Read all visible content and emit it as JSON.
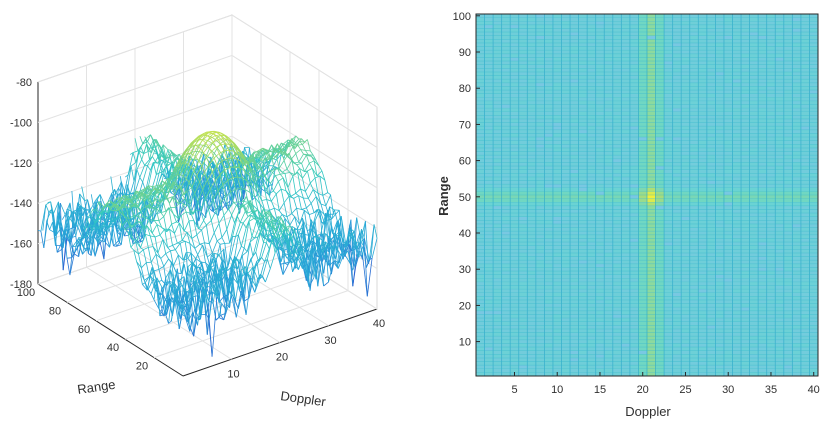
{
  "chart_data": [
    {
      "type": "surface",
      "xlabel": "Doppler",
      "ylabel": "Range",
      "zlabel": "",
      "x_ticks": [
        10,
        20,
        30,
        40
      ],
      "y_ticks": [
        20,
        40,
        60,
        80,
        100
      ],
      "z_ticks": [
        -80,
        -100,
        -120,
        -140,
        -160,
        -180
      ],
      "xlim": [
        0,
        40
      ],
      "ylim": [
        0,
        100
      ],
      "zlim": [
        -180,
        -80
      ],
      "noise_floor": -150,
      "peak": {
        "doppler": 21,
        "range": 50,
        "value": -100
      },
      "sidelobe_ridges": [
        {
          "along": "doppler",
          "at_range": 50,
          "level": -118
        },
        {
          "along": "range",
          "at_doppler": 21,
          "level": -125
        }
      ],
      "colormap": [
        "#2b4fd0",
        "#28a6d8",
        "#33c9c2",
        "#9bd86a",
        "#f2ef3a"
      ],
      "grid": true
    },
    {
      "type": "heatmap",
      "xlabel": "Doppler",
      "ylabel": "Range",
      "x_ticks": [
        5,
        10,
        15,
        20,
        25,
        30,
        35,
        40
      ],
      "y_ticks": [
        10,
        20,
        30,
        40,
        50,
        60,
        70,
        80,
        90,
        100
      ],
      "xlim": [
        1,
        41
      ],
      "ylim": [
        1,
        101
      ],
      "peak": {
        "doppler": 21,
        "range": 50
      },
      "colormap": [
        "#2b4fd0",
        "#28a6d8",
        "#33c9c2",
        "#9bd86a",
        "#f2ef3a"
      ]
    }
  ]
}
